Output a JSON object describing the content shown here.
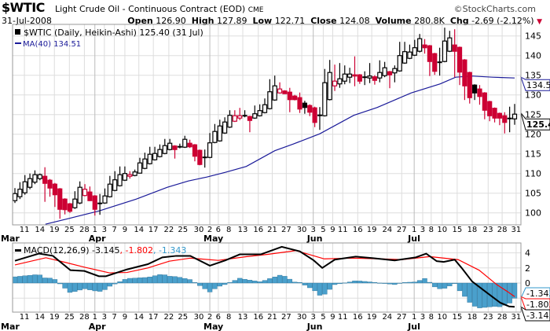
{
  "header": {
    "symbol": "$WTIC",
    "title": "Light Crude Oil - Continuous Contract (EOD)",
    "exchange": "CME",
    "brand": "©StockCharts.com",
    "date": "31-Jul-2008",
    "open_label": "Open",
    "open": "126.90",
    "high_label": "High",
    "high": "127.89",
    "low_label": "Low",
    "low": "122.71",
    "close_label": "Close",
    "close": "124.08",
    "volume_label": "Volume",
    "volume": "280.8K",
    "chg_label": "Chg",
    "chg": "-2.69 (-2.12%)"
  },
  "colors": {
    "up": "#000000",
    "down": "#cc0033",
    "ma": "#1a1a99",
    "signal": "#ff0000",
    "hist": "#4aa0cc",
    "grid": "#dddddd"
  },
  "legend": {
    "price": "$WTIC (Daily, Heikin-Ashi) 125.40 (31 Jul)",
    "ma": "MA(40) 134.51",
    "macd_name": "MACD(12,26,9)",
    "macd_val": "-3.145",
    "signal_val": ", -1.802",
    "hist_val": ", -1.343"
  },
  "chart_data": [
    {
      "type": "candlestick",
      "title": "$WTIC (Daily, Heikin-Ashi)",
      "ylim": [
        97,
        148
      ],
      "yticks": [
        100,
        105,
        110,
        115,
        120,
        125,
        130,
        135,
        140,
        145
      ],
      "tags": {
        "ma": "134.51",
        "last": "125.40"
      },
      "candles": [
        [
          103.1,
          106.3,
          102.5,
          104.9,
          "k"
        ],
        [
          104.1,
          107.8,
          103.5,
          106,
          "k"
        ],
        [
          105.1,
          109.6,
          104.6,
          107.9,
          "k"
        ],
        [
          106.5,
          110,
          106,
          108.7,
          "k"
        ],
        [
          107.8,
          110.8,
          107.3,
          109.7,
          "k"
        ],
        [
          108.7,
          110,
          108.3,
          109.7,
          "k"
        ],
        [
          109.3,
          111.6,
          102.8,
          107.5,
          "r"
        ],
        [
          108.3,
          108.6,
          104.1,
          106.3,
          "r"
        ],
        [
          107.3,
          107.6,
          101.5,
          104.6,
          "r"
        ],
        [
          106.1,
          106.3,
          98.5,
          100.9,
          "r"
        ],
        [
          103.5,
          103.7,
          99.6,
          100.8,
          "r"
        ],
        [
          102.3,
          102.5,
          100,
          100.4,
          "r"
        ],
        [
          101.3,
          105.5,
          101,
          103.5,
          "k"
        ],
        [
          102.5,
          108,
          102.2,
          106.5,
          "k"
        ],
        [
          104.4,
          107.3,
          104.2,
          106,
          "r"
        ],
        [
          105.3,
          106.7,
          103,
          103.1,
          "r"
        ],
        [
          104.3,
          104.5,
          99.3,
          100.9,
          "r"
        ],
        [
          102.4,
          104.8,
          99.5,
          102.4,
          "k"
        ],
        [
          102.5,
          106.2,
          102.3,
          104.3,
          "k"
        ],
        [
          104.1,
          109.4,
          103.9,
          107.3,
          "k"
        ],
        [
          105.7,
          110.6,
          105.5,
          108.4,
          "k"
        ],
        [
          106.9,
          111.8,
          106.7,
          109.7,
          "k"
        ],
        [
          108.3,
          111.8,
          108.1,
          110,
          "k"
        ],
        [
          109.3,
          110.6,
          108.7,
          109.7,
          "r"
        ],
        [
          109.5,
          111,
          109.3,
          110.4,
          "k"
        ],
        [
          110.1,
          114,
          110,
          112.7,
          "k"
        ],
        [
          111.3,
          115.3,
          111.1,
          113.7,
          "k"
        ],
        [
          112.5,
          116.8,
          112.3,
          114.9,
          "k"
        ],
        [
          113.5,
          116.8,
          113.3,
          115.1,
          "k"
        ],
        [
          114.3,
          117.4,
          114.1,
          116.1,
          "k"
        ],
        [
          115.1,
          118.8,
          114.9,
          117.1,
          "k"
        ],
        [
          116.1,
          118.8,
          115.9,
          117.7,
          "k"
        ],
        [
          117,
          117.2,
          113.8,
          116.1,
          "r"
        ],
        [
          116.8,
          117.6,
          116.4,
          116.8,
          "k"
        ],
        [
          116.7,
          119.6,
          116.5,
          118.7,
          "k"
        ],
        [
          117.7,
          118.6,
          116.5,
          116.8,
          "r"
        ],
        [
          117.3,
          117.5,
          113.1,
          114.4,
          "r"
        ],
        [
          115.9,
          116.1,
          112.1,
          112.3,
          "r"
        ],
        [
          114.1,
          116.1,
          111.5,
          114.1,
          "k"
        ],
        [
          114.1,
          120.3,
          113.9,
          117.8,
          "k"
        ],
        [
          117.9,
          122.6,
          117.7,
          120.7,
          "k"
        ],
        [
          118.3,
          123.7,
          118.1,
          122.1,
          "k"
        ],
        [
          120.3,
          124.3,
          120.1,
          123.1,
          "k"
        ],
        [
          121.8,
          126.1,
          121.6,
          124.8,
          "k"
        ],
        [
          123.3,
          126.1,
          123.1,
          124.7,
          "r"
        ],
        [
          124.1,
          126.7,
          123.6,
          124.7,
          "r"
        ],
        [
          124.7,
          126.1,
          124.3,
          124.7,
          "k"
        ],
        [
          124.5,
          124.7,
          120.5,
          123.5,
          "r"
        ],
        [
          124.1,
          127.3,
          123.9,
          125.2,
          "k"
        ],
        [
          124.7,
          127.6,
          124.5,
          126,
          "k"
        ],
        [
          125.5,
          129.1,
          125.3,
          127.5,
          "k"
        ],
        [
          126.5,
          134,
          126.3,
          130.8,
          "k"
        ],
        [
          128.7,
          134.9,
          128.5,
          132.3,
          "k"
        ],
        [
          130.5,
          133.2,
          130.3,
          131.5,
          "r"
        ],
        [
          131,
          131.2,
          130.3,
          130.3,
          "r"
        ],
        [
          130.7,
          131.8,
          125.6,
          128.8,
          "r"
        ],
        [
          129.7,
          130,
          128.6,
          128.8,
          "r"
        ],
        [
          129.3,
          130.6,
          125.4,
          126.4,
          "r"
        ],
        [
          127.9,
          128.5,
          125.2,
          126.8,
          "k"
        ],
        [
          127.3,
          127.6,
          124.6,
          125.6,
          "r"
        ],
        [
          126.7,
          127,
          121.8,
          123,
          "r"
        ],
        [
          124.8,
          126.9,
          121.1,
          124.8,
          "k"
        ],
        [
          124.7,
          136.6,
          124.5,
          133.1,
          "k"
        ],
        [
          128.8,
          138.9,
          128.6,
          135.7,
          "k"
        ],
        [
          132.3,
          137.7,
          131,
          133.5,
          "r"
        ],
        [
          132.8,
          138.1,
          131.8,
          134.1,
          "k"
        ],
        [
          133.5,
          137.5,
          132.7,
          135.3,
          "k"
        ],
        [
          134.5,
          136.9,
          133,
          135.3,
          "k"
        ],
        [
          135.1,
          139.8,
          132.2,
          134.8,
          "r"
        ],
        [
          135.1,
          135.3,
          132.8,
          133.5,
          "r"
        ],
        [
          134.5,
          136,
          132.5,
          134.5,
          "k"
        ],
        [
          134.3,
          138.1,
          133,
          134.8,
          "k"
        ],
        [
          134.6,
          135,
          132.6,
          133.7,
          "r"
        ],
        [
          134.3,
          138.8,
          133.2,
          135.7,
          "k"
        ],
        [
          134.9,
          138.4,
          134.5,
          136.9,
          "k"
        ],
        [
          135.9,
          136.1,
          131.7,
          135.1,
          "r"
        ],
        [
          135.6,
          137.5,
          133.2,
          136.7,
          "k"
        ],
        [
          136.1,
          143.5,
          135.9,
          140,
          "k"
        ],
        [
          138.1,
          143.5,
          137.9,
          141,
          "k"
        ],
        [
          139.3,
          142.8,
          139.1,
          140.9,
          "k"
        ],
        [
          140.1,
          144,
          139.9,
          142,
          "k"
        ],
        [
          141.1,
          145.5,
          140.8,
          144.3,
          "k"
        ],
        [
          142.7,
          144.2,
          140.5,
          142,
          "r"
        ],
        [
          142.5,
          142.7,
          134.8,
          138.5,
          "r"
        ],
        [
          140.5,
          140.7,
          135.1,
          136,
          "r"
        ],
        [
          138.3,
          142,
          134.9,
          138.3,
          "k"
        ],
        [
          138.5,
          147.1,
          138.3,
          143.7,
          "k"
        ],
        [
          141.1,
          146.3,
          140.9,
          144.5,
          "k"
        ],
        [
          142.7,
          146.7,
          134.5,
          141.1,
          "r"
        ],
        [
          142.1,
          142.3,
          132.5,
          135.8,
          "r"
        ],
        [
          138.9,
          139.1,
          128.7,
          132.3,
          "r"
        ],
        [
          135.7,
          135.9,
          127.8,
          129.3,
          "r"
        ],
        [
          132.5,
          132.7,
          128.7,
          130.5,
          "k"
        ],
        [
          131.5,
          132.5,
          127.5,
          129.6,
          "r"
        ],
        [
          130.5,
          130.7,
          123.8,
          126.1,
          "r"
        ],
        [
          128.3,
          128.5,
          123.3,
          124.7,
          "r"
        ],
        [
          126.6,
          126.8,
          123,
          124.1,
          "r"
        ],
        [
          125.3,
          125.5,
          122.3,
          124.1,
          "r"
        ],
        [
          124.7,
          125.6,
          120.2,
          123,
          "r"
        ],
        [
          124,
          127,
          120.5,
          124,
          "k"
        ],
        [
          123.9,
          127.7,
          122.4,
          125.1,
          "k"
        ]
      ],
      "ma40": [
        [
          6.1,
          97.1
        ],
        [
          10.6,
          98.5
        ],
        [
          16.9,
          100.5
        ],
        [
          24.3,
          103.5
        ],
        [
          30.5,
          106.5
        ],
        [
          34.7,
          108.1
        ],
        [
          38.4,
          109.1
        ],
        [
          42.1,
          110.3
        ],
        [
          46.3,
          111.8
        ],
        [
          52,
          115.8
        ],
        [
          55.7,
          117.5
        ],
        [
          61,
          120.1
        ],
        [
          67.8,
          124.8
        ],
        [
          72.5,
          126.8
        ],
        [
          79.3,
          130.5
        ],
        [
          85.1,
          132.8
        ],
        [
          88.2,
          134.5
        ],
        [
          91.4,
          134.8
        ],
        [
          95.6,
          134.5
        ],
        [
          100,
          134.3
        ]
      ]
    },
    {
      "type": "line",
      "title": "MACD(12,26,9)",
      "ylim": [
        -3.8,
        5.5
      ],
      "yticks": [
        0,
        2,
        4
      ],
      "tags": {
        "hist": "-1.343",
        "signal": "-1.802",
        "macd": "-3.145"
      },
      "macd": [
        [
          0,
          2.95
        ],
        [
          4.8,
          3.9
        ],
        [
          7.6,
          3.6
        ],
        [
          11.1,
          1.7
        ],
        [
          13.9,
          1.6
        ],
        [
          16.8,
          0.9
        ],
        [
          18.2,
          0.9
        ],
        [
          22.4,
          1.8
        ],
        [
          26.6,
          2.5
        ],
        [
          29.5,
          3.4
        ],
        [
          32.3,
          3.6
        ],
        [
          35.1,
          3.6
        ],
        [
          39,
          2.3
        ],
        [
          42.1,
          3.0
        ],
        [
          45,
          3.8
        ],
        [
          49.2,
          3.8
        ],
        [
          53.4,
          4.8
        ],
        [
          57,
          4.2
        ],
        [
          59.8,
          3.0
        ],
        [
          61.5,
          2.0
        ],
        [
          64,
          3.1
        ],
        [
          68.2,
          3.5
        ],
        [
          71.7,
          3.3
        ],
        [
          76,
          3.0
        ],
        [
          80.2,
          3.4
        ],
        [
          82.3,
          3.9
        ],
        [
          84.4,
          2.9
        ],
        [
          85.8,
          2.8
        ],
        [
          88,
          3.1
        ],
        [
          89.4,
          2.0
        ],
        [
          91.5,
          0.2
        ],
        [
          94.3,
          -1.2
        ],
        [
          97.1,
          -2.6
        ],
        [
          98.9,
          -3.1
        ],
        [
          100,
          -3.145
        ]
      ],
      "signal": [
        [
          0,
          2.4
        ],
        [
          6.2,
          3.35
        ],
        [
          9.7,
          2.8
        ],
        [
          13.9,
          2.1
        ],
        [
          18.9,
          1.35
        ],
        [
          22.4,
          1.4
        ],
        [
          26.6,
          2.0
        ],
        [
          30.9,
          2.9
        ],
        [
          35.1,
          3.3
        ],
        [
          40.7,
          3.0
        ],
        [
          46.4,
          3.5
        ],
        [
          50.6,
          3.8
        ],
        [
          56.2,
          4.3
        ],
        [
          61.9,
          3.2
        ],
        [
          67.5,
          3.3
        ],
        [
          73.2,
          3.2
        ],
        [
          77.4,
          3.1
        ],
        [
          83,
          3.5
        ],
        [
          88.7,
          3.1
        ],
        [
          92.9,
          1.7
        ],
        [
          96.4,
          -0.2
        ],
        [
          98.5,
          -1.1
        ],
        [
          100,
          -1.802
        ]
      ]
    }
  ],
  "xaxis": {
    "days": [
      [
        "11",
        1.9
      ],
      [
        "14",
        5
      ],
      [
        "19",
        7.9
      ],
      [
        "25",
        10.9
      ],
      [
        "28",
        13.9
      ],
      [
        "1",
        16
      ],
      [
        "3",
        17.9
      ],
      [
        "7",
        19.9
      ],
      [
        "9",
        22
      ],
      [
        "14",
        24.8
      ],
      [
        "17",
        27.7
      ],
      [
        "22",
        30.8
      ],
      [
        "25",
        33.6
      ],
      [
        "30",
        36.8
      ],
      [
        "2",
        39
      ],
      [
        "6",
        40.7
      ],
      [
        "8",
        42.8
      ],
      [
        "13",
        45.6
      ],
      [
        "16",
        48.7
      ],
      [
        "21",
        51.5
      ],
      [
        "27",
        54.3
      ],
      [
        "30",
        57.4
      ],
      [
        "3",
        59.7
      ],
      [
        "5",
        61.7
      ],
      [
        "9",
        63.6
      ],
      [
        "11",
        65.6
      ],
      [
        "16",
        68.6
      ],
      [
        "19",
        71.4
      ],
      [
        "24",
        74.5
      ],
      [
        "27",
        77.4
      ],
      [
        "1",
        79.9
      ],
      [
        "3",
        81.6
      ],
      [
        "8",
        83.3
      ],
      [
        "10",
        85.5
      ],
      [
        "15",
        88.5
      ],
      [
        "18",
        91.5
      ],
      [
        "23",
        94.7
      ],
      [
        "28",
        97.5
      ],
      [
        "31",
        100.3
      ]
    ],
    "months": [
      [
        "Mar",
        -2.5
      ],
      [
        "Apr",
        16
      ],
      [
        "May",
        39
      ],
      [
        "Jun",
        59.7
      ],
      [
        "Jul",
        79.9
      ]
    ]
  }
}
